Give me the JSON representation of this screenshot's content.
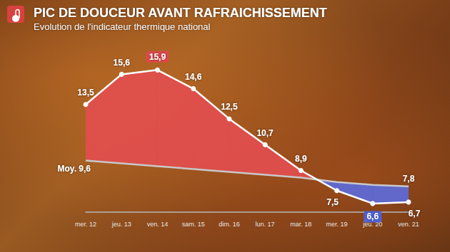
{
  "chart_data": {
    "type": "line",
    "title": "PIC DE DOUCEUR AVANT RAFRAICHISSEMENT",
    "subtitle": "Evolution de l'indicateur thermique national",
    "categories": [
      "mer. 12",
      "jeu. 13",
      "ven. 14",
      "sam. 15",
      "dim. 16",
      "lun. 17",
      "mar. 18",
      "mer. 19",
      "jeu. 20",
      "ven. 21"
    ],
    "series": [
      {
        "color": "#ffffff",
        "values": [
          13.5,
          15.6,
          15.9,
          14.6,
          12.5,
          10.7,
          8.9,
          7.5,
          6.6,
          6.7
        ],
        "value_labels": [
          "13,5",
          "15,6",
          "15,9",
          "14,6",
          "12,5",
          "10,7",
          "8,9",
          "7,5",
          "6,6",
          "6,7"
        ]
      },
      {
        "color": "#c8c8c8",
        "values": [
          9.6,
          9.4,
          9.2,
          9.0,
          8.8,
          8.6,
          8.4,
          8.1,
          7.9,
          7.8
        ],
        "value_labels": [
          "Moy. 9,6",
          null,
          null,
          null,
          null,
          null,
          null,
          null,
          null,
          "7,8"
        ]
      }
    ],
    "ylim": [
      6,
      18
    ],
    "grid": false,
    "tick_labels": "x",
    "data_labels": true
  }
}
